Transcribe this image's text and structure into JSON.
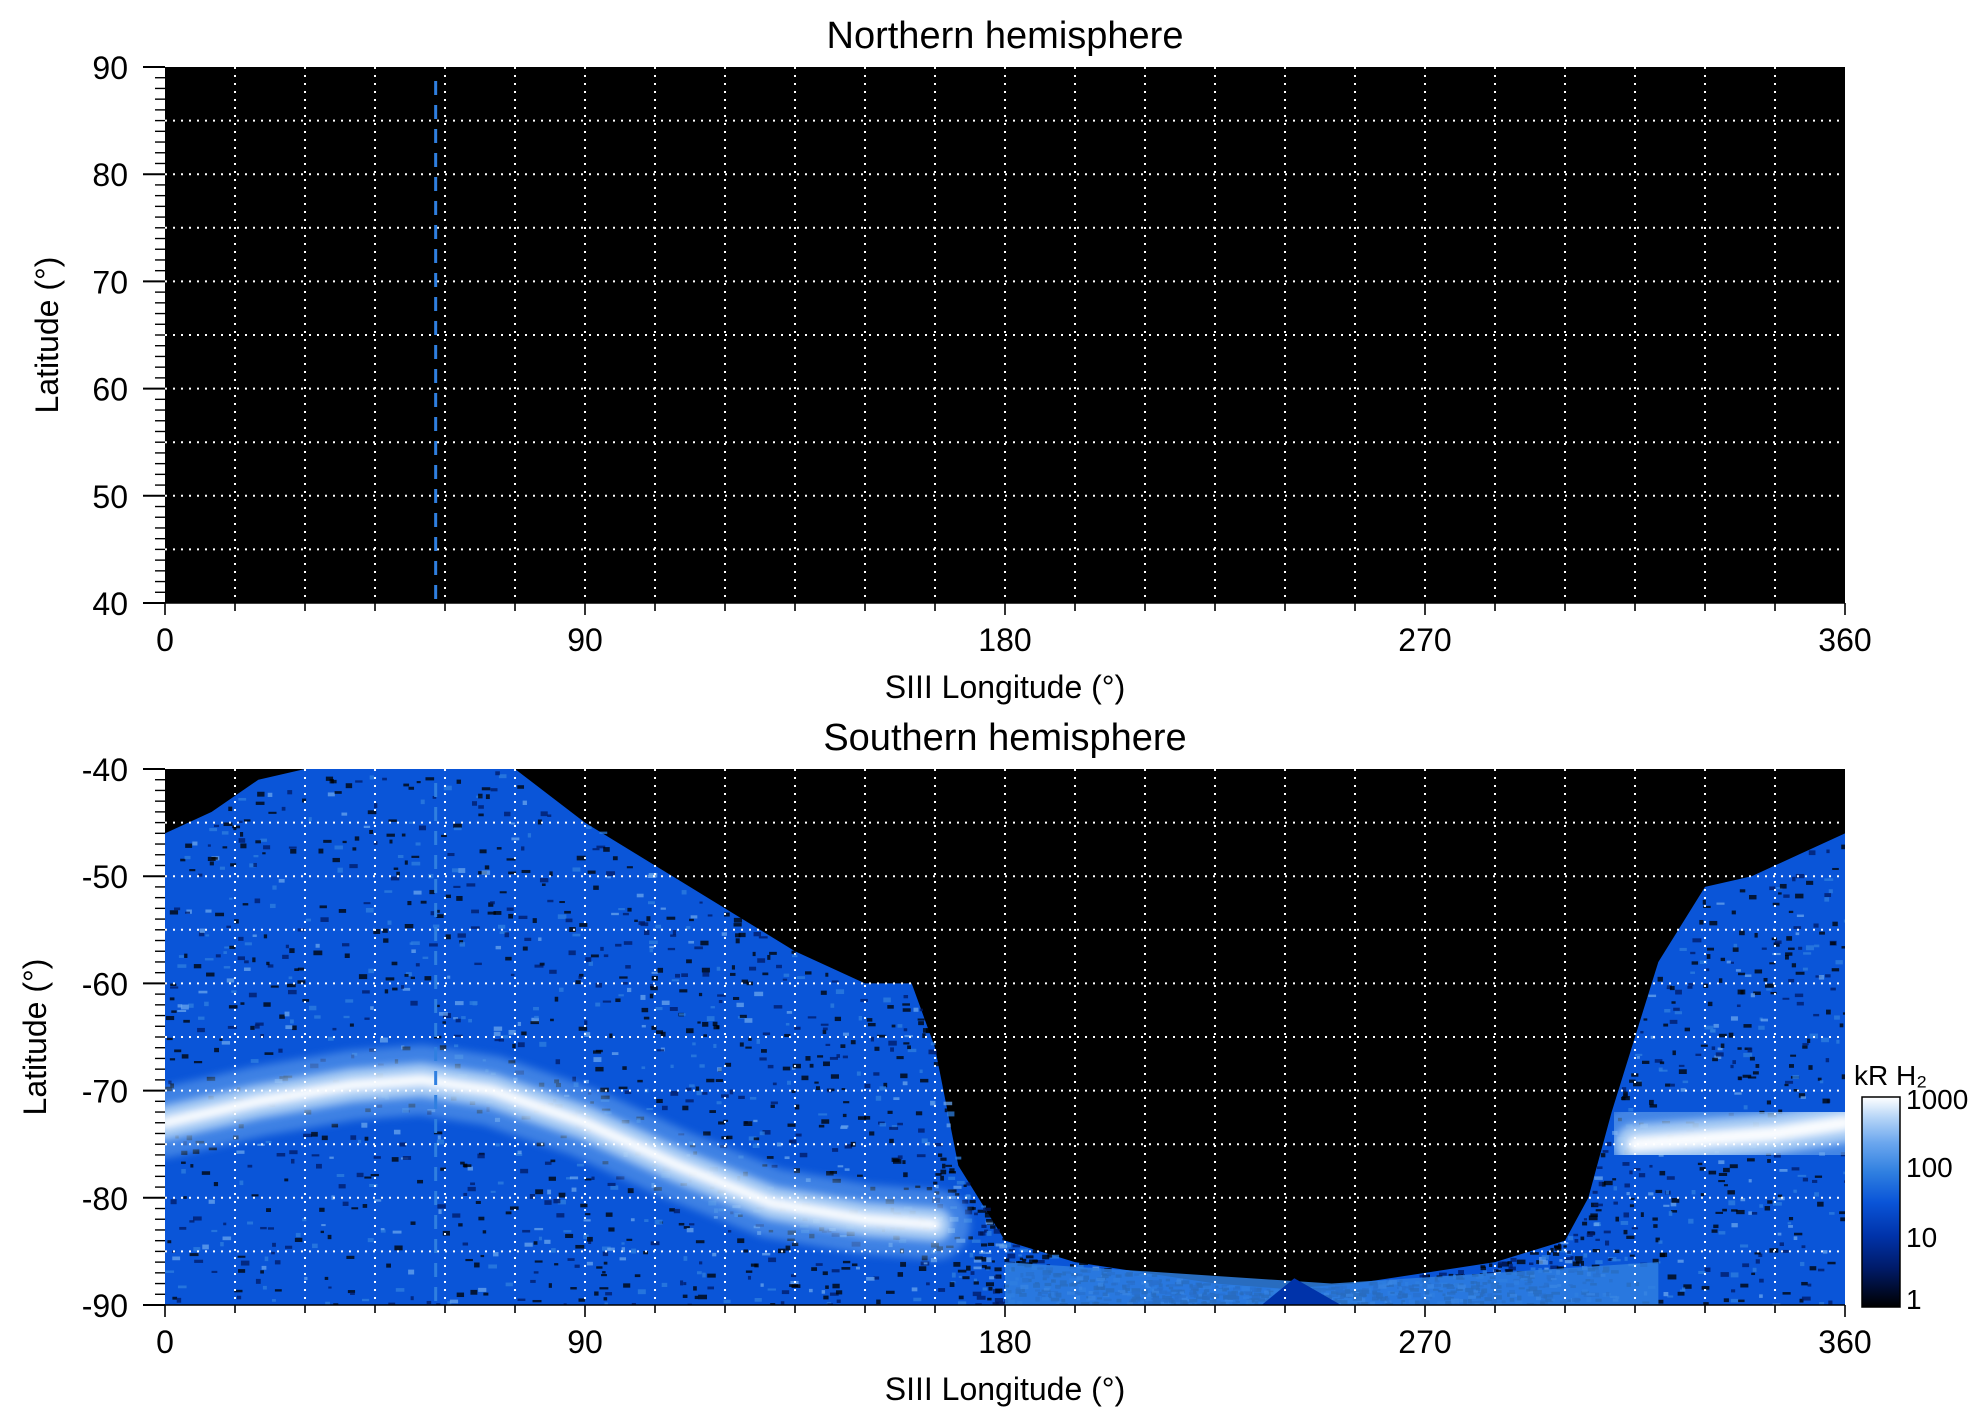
{
  "colors": {
    "background": "#000000",
    "grid": "#ffffff",
    "marker": "#2f7fe0",
    "colormap": [
      "#000000",
      "#001a66",
      "#0033aa",
      "#0a55d8",
      "#2f7fe0",
      "#6aa6ee",
      "#b4d4f7",
      "#ffffff"
    ]
  },
  "chart_data": [
    {
      "type": "heatmap",
      "title": "Northern hemisphere",
      "xlabel": "SIII Longitude (°)",
      "ylabel": "Latitude (°)",
      "xlim": [
        0,
        360
      ],
      "ylim": [
        40,
        90
      ],
      "xticks": [
        0,
        90,
        180,
        270,
        360
      ],
      "xtick_labels": [
        "0",
        "90",
        "180",
        "270",
        "360"
      ],
      "yticks": [
        40,
        50,
        60,
        70,
        80,
        90
      ],
      "ytick_labels": [
        "40",
        "50",
        "60",
        "70",
        "80",
        "90"
      ],
      "grid": true,
      "grid_spacing": {
        "longitude": 15,
        "latitude": 5
      },
      "marker_line": {
        "style": "dashed",
        "longitude": 58
      },
      "data_summary": "No emission visible (entire map black)"
    },
    {
      "type": "heatmap",
      "title": "Southern hemisphere",
      "xlabel": "SIII Longitude (°)",
      "ylabel": "Latitude (°)",
      "xlim": [
        0,
        360
      ],
      "ylim": [
        -90,
        -40
      ],
      "xticks": [
        0,
        90,
        180,
        270,
        360
      ],
      "xtick_labels": [
        "0",
        "90",
        "180",
        "270",
        "360"
      ],
      "yticks": [
        -90,
        -80,
        -70,
        -60,
        -50,
        -40
      ],
      "ytick_labels": [
        "-90",
        "-80",
        "-70",
        "-60",
        "-50",
        "-40"
      ],
      "grid": true,
      "grid_spacing": {
        "longitude": 15,
        "latitude": 5
      },
      "marker_line": {
        "style": "dashed",
        "longitude": 58
      },
      "main_oval": {
        "longitude": [
          0,
          20,
          40,
          55,
          70,
          90,
          110,
          130,
          150,
          165,
          315,
          330,
          345,
          360
        ],
        "latitude": [
          -73,
          -71,
          -69.5,
          -69,
          -70,
          -73,
          -77,
          -80.5,
          -82,
          -82.5,
          -75,
          -74.5,
          -74,
          -73
        ]
      },
      "coverage_edge": {
        "longitude": [
          0,
          10,
          20,
          30,
          45,
          60,
          75,
          90,
          105,
          120,
          135,
          150,
          160,
          165,
          170,
          180,
          195,
          210,
          225,
          240,
          255,
          270,
          285,
          300,
          305,
          310,
          320,
          330,
          340,
          350,
          360
        ],
        "latitude": [
          -46,
          -44,
          -41,
          -40,
          -40,
          -40,
          -40,
          -45,
          -49,
          -53,
          -57,
          -60,
          -60,
          -66,
          -77,
          -84,
          -86,
          -87,
          -88,
          -88.5,
          -88,
          -87,
          -86,
          -84,
          -80,
          -72,
          -58,
          -51,
          -50,
          -48,
          -46
        ]
      },
      "colorbar": {
        "label": "kR H₂",
        "scale": "log",
        "range": [
          1,
          1000
        ],
        "ticks": [
          1,
          10,
          100,
          1000
        ],
        "tick_labels": [
          "1",
          "10",
          "100",
          "1000"
        ]
      }
    }
  ]
}
